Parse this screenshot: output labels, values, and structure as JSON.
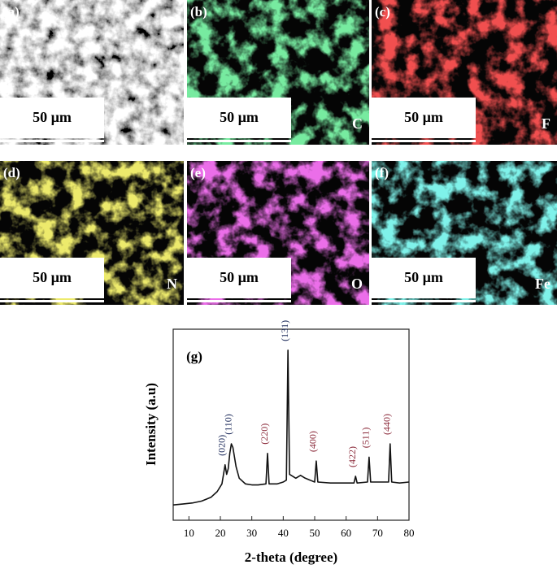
{
  "panels": [
    {
      "label": "(a)",
      "scale": "50 µm",
      "color": "#bdbdbd"
    },
    {
      "label": "(b)",
      "scale": "50 µm",
      "element": "C",
      "color": "#2fd35a"
    },
    {
      "label": "(c)",
      "scale": "50 µm",
      "element": "F",
      "color": "#e01414"
    },
    {
      "label": "(d)",
      "scale": "50 µm",
      "element": "N",
      "color": "#d8d226"
    },
    {
      "label": "(e)",
      "scale": "50 µm",
      "element": "O",
      "color": "#d428d0"
    },
    {
      "label": "(f)",
      "scale": "50 µm",
      "element": "Fe",
      "color": "#36e2d2"
    }
  ],
  "chart_data": {
    "type": "line",
    "panel_label": "(g)",
    "xlabel": "2-theta (degree)",
    "ylabel": "Intensity (a.u)",
    "xlim": [
      5,
      80
    ],
    "xticks": [
      10,
      20,
      30,
      40,
      50,
      60,
      70,
      80
    ],
    "ylim": [
      0,
      100
    ],
    "color": "#111111",
    "x": [
      5,
      8,
      11,
      14,
      17,
      19,
      20.5,
      21,
      21.5,
      22,
      22.5,
      23,
      23.5,
      24,
      25,
      26,
      28,
      30,
      32,
      34.5,
      35,
      35.5,
      38,
      40,
      41,
      41.5,
      42,
      44,
      45.5,
      47,
      50,
      50.5,
      51,
      55,
      60,
      62.5,
      63,
      63.5,
      66.8,
      67.3,
      67.8,
      73.5,
      74,
      74.5,
      77,
      80
    ],
    "values": [
      8,
      8.5,
      9,
      10,
      12,
      15,
      19,
      24,
      29,
      24,
      27,
      35,
      40,
      38,
      28,
      22,
      19,
      18.5,
      18.5,
      19,
      35,
      19,
      19,
      20,
      21,
      89,
      24,
      22,
      23.5,
      22,
      20,
      31,
      20,
      19.5,
      19.5,
      19.5,
      23,
      19.5,
      20,
      33,
      20,
      20,
      40,
      20,
      19.5,
      20
    ],
    "annotations": [
      {
        "text": "(020)",
        "x": 21.5,
        "color": "#1c2a5a"
      },
      {
        "text": "(110)",
        "x": 23.5,
        "color": "#1c2a5a"
      },
      {
        "text": "(220)",
        "x": 35,
        "color": "#8b2a3a"
      },
      {
        "text": "(131)",
        "x": 41.5,
        "color": "#1c2a5a"
      },
      {
        "text": "(400)",
        "x": 50.5,
        "color": "#8b2a3a"
      },
      {
        "text": "(422)",
        "x": 63,
        "color": "#8b2a3a"
      },
      {
        "text": "(511)",
        "x": 67.3,
        "color": "#8b2a3a"
      },
      {
        "text": "(440)",
        "x": 74,
        "color": "#8b2a3a"
      }
    ]
  }
}
